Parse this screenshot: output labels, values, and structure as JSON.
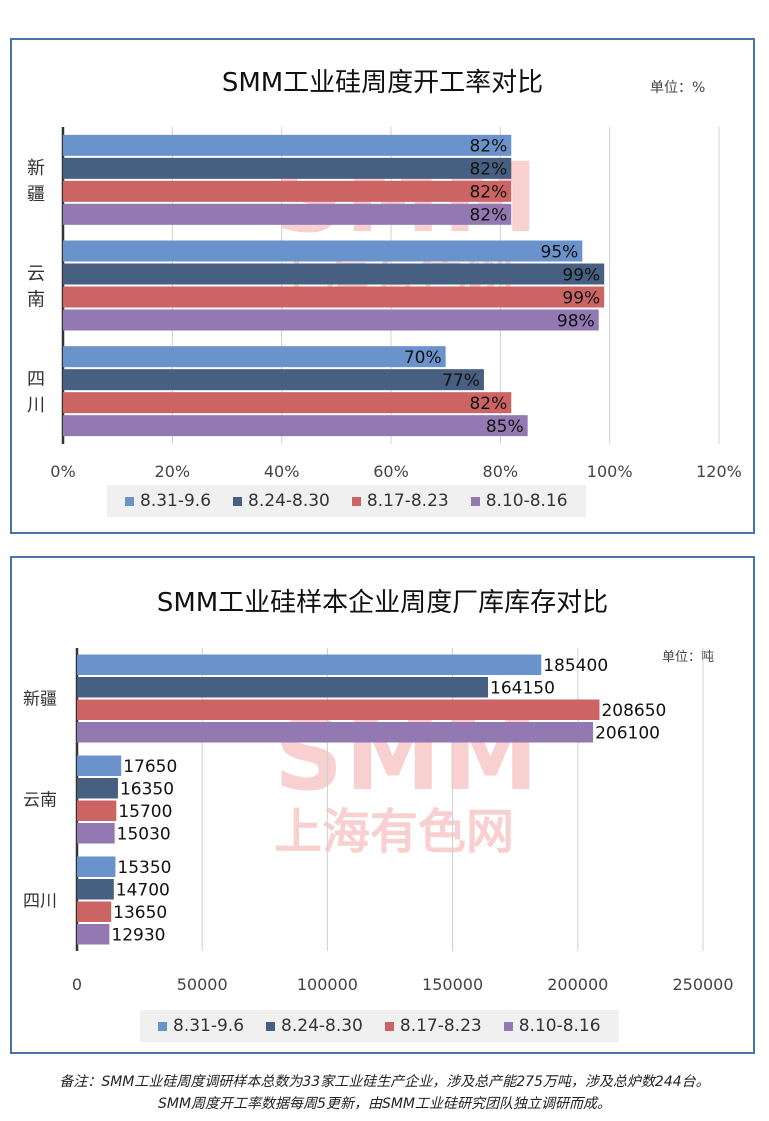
{
  "charts": {
    "utilization": {
      "title": "SMM工业硅周度开工率对比",
      "unit": "单位：%",
      "watermark_logo": "SMM",
      "watermark_text": "上海有色网"
    },
    "inventory": {
      "title": "SMM工业硅样本企业周度厂库库存对比",
      "unit": "单位：吨",
      "watermark_logo": "SMM",
      "watermark_text": "上海有色网"
    }
  },
  "legend": [
    {
      "label": "8.31-9.6",
      "color": "#6a93cb"
    },
    {
      "label": "8.24-8.30",
      "color": "#475f80"
    },
    {
      "label": "8.17-8.23",
      "color": "#cc6464"
    },
    {
      "label": "8.10-8.16",
      "color": "#9279b2"
    }
  ],
  "chart_data": [
    {
      "type": "bar",
      "orientation": "horizontal",
      "title": "SMM工业硅周度开工率对比",
      "unit": "单位：%",
      "categories": [
        "新疆",
        "云南",
        "四川"
      ],
      "xlim": [
        0,
        120
      ],
      "xticks": [
        "0%",
        "20%",
        "40%",
        "60%",
        "80%",
        "100%",
        "120%"
      ],
      "grid": true,
      "legend_position": "bottom",
      "series": [
        {
          "name": "8.31-9.6",
          "values": [
            82,
            95,
            70
          ],
          "labels": [
            "82%",
            "95%",
            "70%"
          ]
        },
        {
          "name": "8.24-8.30",
          "values": [
            82,
            99,
            77
          ],
          "labels": [
            "82%",
            "99%",
            "77%"
          ]
        },
        {
          "name": "8.17-8.23",
          "values": [
            82,
            99,
            82
          ],
          "labels": [
            "82%",
            "99%",
            "82%"
          ]
        },
        {
          "name": "8.10-8.16",
          "values": [
            82,
            98,
            85
          ],
          "labels": [
            "82%",
            "98%",
            "85%"
          ]
        }
      ]
    },
    {
      "type": "bar",
      "orientation": "horizontal",
      "title": "SMM工业硅样本企业周度厂库库存对比",
      "unit": "单位：吨",
      "categories": [
        "新疆",
        "云南",
        "四川"
      ],
      "xlim": [
        0,
        250000
      ],
      "xticks": [
        "0",
        "50000",
        "100000",
        "150000",
        "200000",
        "250000"
      ],
      "grid": true,
      "legend_position": "bottom",
      "series": [
        {
          "name": "8.31-9.6",
          "values": [
            185400,
            17650,
            15350
          ],
          "labels": [
            "185400",
            "17650",
            "15350"
          ]
        },
        {
          "name": "8.24-8.30",
          "values": [
            164150,
            16350,
            14700
          ],
          "labels": [
            "164150",
            "16350",
            "14700"
          ]
        },
        {
          "name": "8.17-8.23",
          "values": [
            208650,
            15700,
            13650
          ],
          "labels": [
            "208650",
            "15700",
            "13650"
          ]
        },
        {
          "name": "8.10-8.16",
          "values": [
            206100,
            15030,
            12930
          ],
          "labels": [
            "206100",
            "15030",
            "12930"
          ]
        }
      ]
    }
  ],
  "footnote": {
    "line1": "备注：SMM工业硅周度调研样本总数为33家工业硅生产企业，涉及总产能275万吨，涉及总炉数244台。",
    "line2": "SMM周度开工率数据每周5更新，由SMM工业硅研究团队独立调研而成。"
  }
}
